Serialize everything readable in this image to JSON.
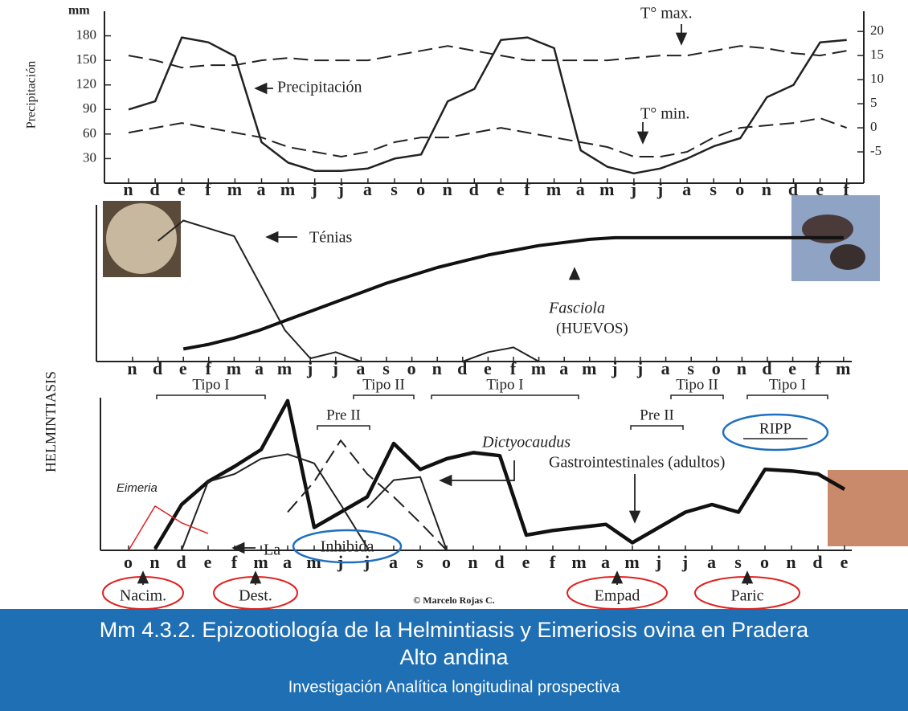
{
  "chart_data": [
    {
      "type": "line",
      "y_label": "Precipitación",
      "y_unit": "mm",
      "categories": [
        "n",
        "d",
        "e",
        "f",
        "m",
        "a",
        "m",
        "j",
        "j",
        "a",
        "s",
        "o",
        "n",
        "d",
        "e",
        "f",
        "m",
        "a",
        "m",
        "j",
        "j",
        "a",
        "s",
        "o",
        "n",
        "d",
        "e",
        "f"
      ],
      "ylim": [
        0,
        210
      ],
      "yticks": [
        30,
        60,
        90,
        120,
        150,
        180
      ],
      "y2lim": [
        -11.5,
        24.2
      ],
      "y2ticks": [
        -5,
        0,
        5,
        10,
        15,
        20
      ],
      "series": [
        {
          "name": "Precipitación",
          "color": "#222",
          "width": 2.5,
          "dash": false,
          "values": [
            90,
            100,
            178,
            172,
            155,
            50,
            25,
            15,
            15,
            18,
            30,
            35,
            100,
            115,
            175,
            178,
            165,
            40,
            20,
            12,
            18,
            30,
            45,
            55,
            105,
            120,
            172,
            175
          ]
        },
        {
          "name": "T° max.",
          "axis": "y2",
          "color": "#222",
          "width": 2,
          "dash": true,
          "values": [
            15,
            14,
            12.5,
            13,
            13,
            14,
            14.5,
            14,
            14,
            14,
            15,
            16,
            17,
            16,
            15,
            14,
            14,
            14,
            14,
            14.5,
            15,
            15,
            16,
            17,
            16.5,
            15.5,
            15,
            16
          ]
        },
        {
          "name": "T° min.",
          "axis": "y2",
          "color": "#222",
          "width": 2,
          "dash": true,
          "values": [
            -1,
            0,
            1,
            0,
            -1,
            -2,
            -4,
            -5,
            -6,
            -5,
            -3,
            -2,
            -2,
            -1,
            0,
            -1,
            -2,
            -3,
            -4,
            -6,
            -6,
            -5,
            -2,
            0,
            0.5,
            1,
            2,
            0
          ]
        }
      ]
    },
    {
      "type": "line",
      "categories": [
        "n",
        "d",
        "e",
        "f",
        "m",
        "a",
        "m",
        "j",
        "j",
        "a",
        "s",
        "o",
        "n",
        "d",
        "e",
        "f",
        "m",
        "a",
        "m",
        "j",
        "j",
        "a",
        "s",
        "o",
        "n",
        "d",
        "e",
        "f",
        "m"
      ],
      "ylim": [
        0,
        10
      ],
      "series": [
        {
          "name": "Ténias",
          "color": "#222",
          "width": 2,
          "dash": false,
          "values": [
            null,
            7.7,
            9,
            8.5,
            8,
            5,
            2,
            0.2,
            0.6,
            0,
            0,
            0,
            0,
            0,
            0.6,
            0.9,
            0,
            null,
            null,
            null,
            null,
            null,
            null,
            null,
            null,
            null,
            null,
            null,
            null
          ]
        },
        {
          "name": "Fasciola",
          "note": "(HUEVOS)",
          "color": "#111",
          "width": 4,
          "dash": false,
          "values": [
            null,
            null,
            0.8,
            1.1,
            1.5,
            2,
            2.6,
            3.2,
            3.8,
            4.4,
            5,
            5.5,
            6,
            6.4,
            6.8,
            7.1,
            7.4,
            7.6,
            7.8,
            7.9,
            7.9,
            7.9,
            7.9,
            7.9,
            7.9,
            7.9,
            7.9,
            7.9,
            7.9
          ]
        }
      ]
    },
    {
      "type": "line",
      "y_label": "HELMINTIASIS",
      "categories": [
        "o",
        "n",
        "d",
        "e",
        "f",
        "m",
        "a",
        "m",
        "j",
        "j",
        "a",
        "s",
        "o",
        "n",
        "d",
        "e",
        "f",
        "m",
        "a",
        "m",
        "j",
        "j",
        "a",
        "s",
        "o",
        "n",
        "d",
        "e"
      ],
      "ylim": [
        0,
        10
      ],
      "series": [
        {
          "name": "Gastrointestinales (adultos)",
          "color": "#111",
          "width": 4.5,
          "dash": false,
          "values": [
            null,
            0.1,
            3,
            4.5,
            5.5,
            6.6,
            9.8,
            1.5,
            2.5,
            3.5,
            7,
            5.3,
            6,
            6.4,
            6.2,
            1,
            1.3,
            1.5,
            1.7,
            0.5,
            1.5,
            2.5,
            3,
            2.5,
            5.3,
            5.2,
            5,
            4
          ]
        },
        {
          "color": "#222",
          "width": 2,
          "dash": false,
          "values": [
            null,
            null,
            0,
            4.5,
            5,
            6,
            6.3,
            5.7,
            3,
            0.2,
            null,
            null,
            null,
            null,
            null,
            null,
            null,
            null,
            null,
            null,
            null,
            null,
            null,
            null,
            null,
            null,
            null,
            null
          ]
        },
        {
          "name": "Dictyocaudus",
          "color": "#222",
          "width": 2,
          "dash": false,
          "values": [
            null,
            null,
            null,
            null,
            null,
            null,
            null,
            null,
            null,
            2.8,
            4.6,
            4.8,
            0,
            null,
            null,
            null,
            null,
            null,
            null,
            null,
            null,
            null,
            null,
            null,
            null,
            null,
            null,
            null
          ]
        },
        {
          "color": "#222",
          "width": 2,
          "dash": true,
          "values": [
            null,
            null,
            null,
            null,
            null,
            null,
            2.5,
            4.5,
            7.2,
            5,
            3.5,
            1.8,
            0,
            null,
            null,
            null,
            null,
            null,
            null,
            null,
            null,
            null,
            null,
            null,
            null,
            null,
            null,
            null
          ]
        },
        {
          "name": "Eimeria",
          "color": "#e02020",
          "width": 1.5,
          "dash": false,
          "values": [
            0,
            2.9,
            1.8,
            1.1,
            null,
            null,
            null,
            null,
            null,
            null,
            null,
            null,
            null,
            null,
            null,
            null,
            null,
            null,
            null,
            null,
            null,
            null,
            null,
            null,
            null,
            null,
            null,
            null
          ]
        }
      ],
      "annotations": [
        "Tipo I",
        "Tipo II",
        "Tipo I",
        "Pre II",
        "Pre II",
        "Tipo II",
        "Tipo I",
        "RIPP",
        "Inhibida",
        "La",
        "Nacim.",
        "Dest.",
        "Empad",
        "Paric"
      ]
    }
  ],
  "credit": "© Marcelo Rojas C.",
  "caption": {
    "title_lines": [
      "Mm 4.3.2. Epizootiología de la Helmintiasis y Eimeriosis ovina en Pradera",
      "Alto andina"
    ],
    "subtitle": "Investigación Analítica longitudinal prospectiva"
  }
}
